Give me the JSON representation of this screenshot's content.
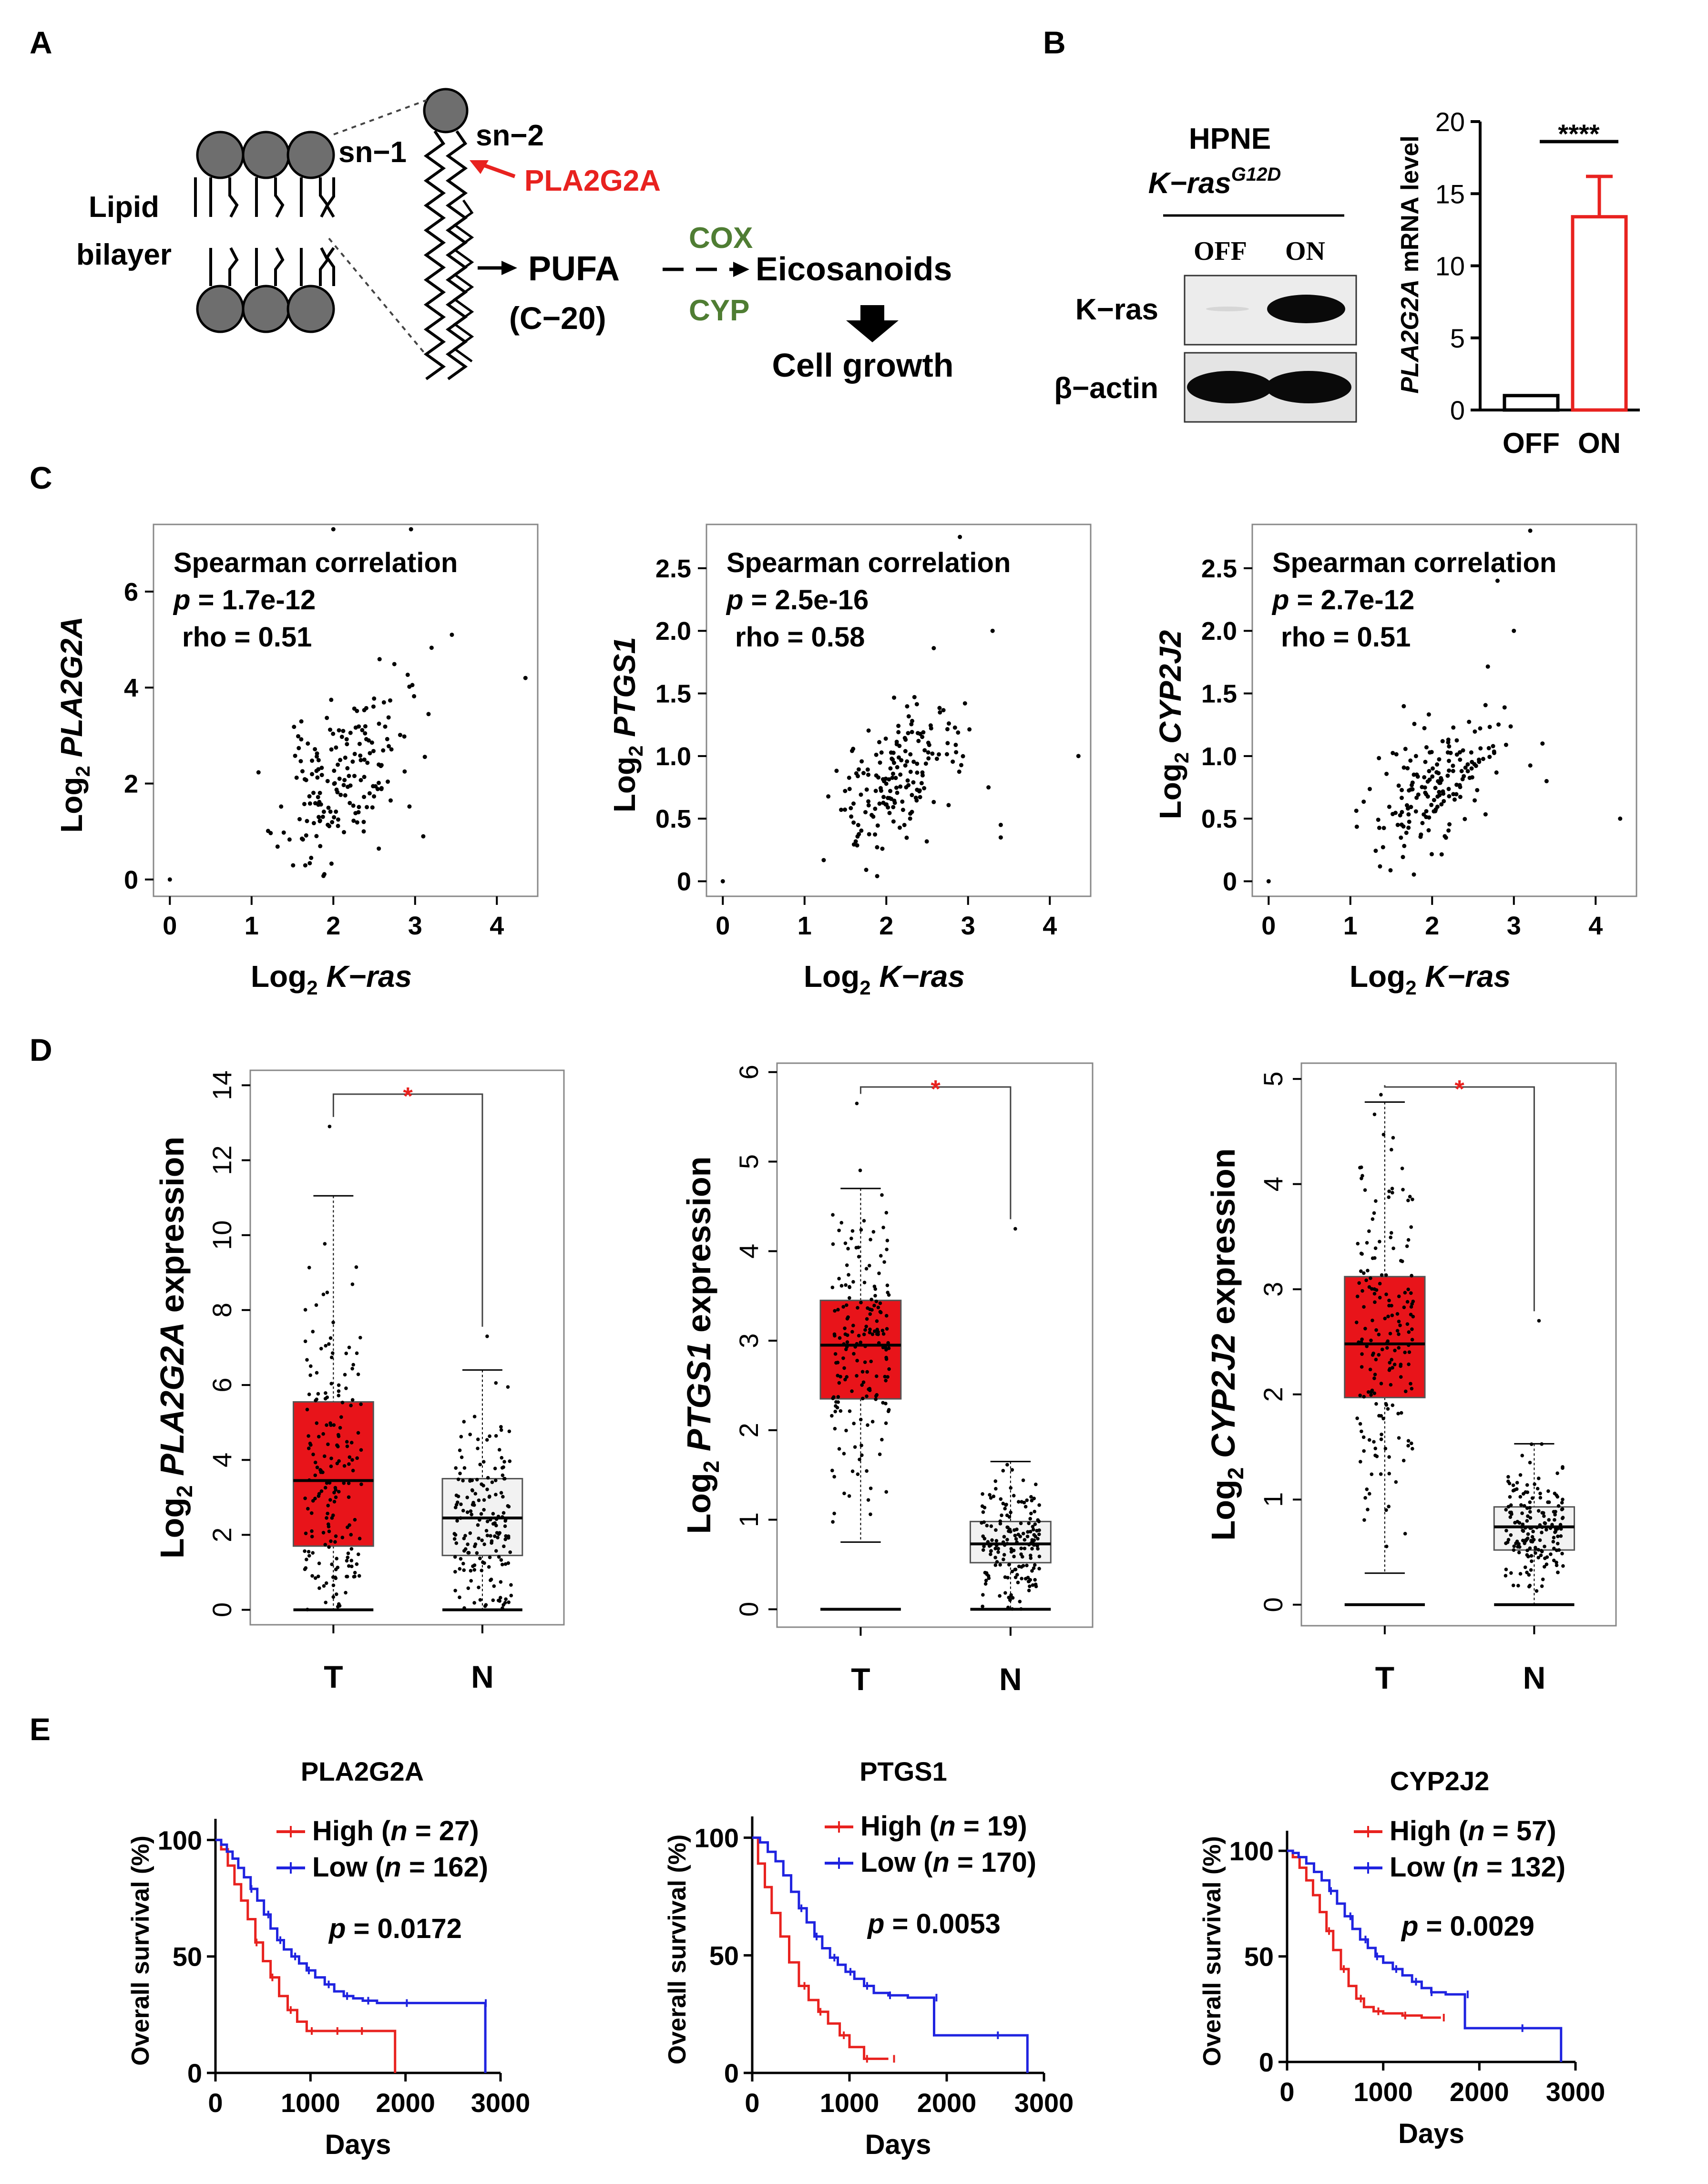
{
  "panels": {
    "A": {
      "letter": "A",
      "sn1": "sn−1",
      "sn2": "sn−2",
      "enzyme": "PLA2G2A",
      "bilayer_line1": "Lipid",
      "bilayer_line2": "bilayer",
      "pufa": "PUFA",
      "pufa_sub": "(C−20)",
      "cox": "COX",
      "cyp": "CYP",
      "eicosanoids": "Eicosanoids",
      "growth": "Cell growth"
    },
    "B": {
      "letter": "B",
      "cell_line": "HPNE",
      "construct_base": "K−ras",
      "construct_sup": "G12D",
      "lane_off": "OFF",
      "lane_on": "ON",
      "row1": "K−ras",
      "row2": "β−actin",
      "bar_ylabel_gene": "PLA2G2A",
      "bar_ylabel_rest": " mRNA level",
      "signif": "****"
    },
    "C": {
      "letter": "C"
    },
    "D": {
      "letter": "D"
    },
    "E": {
      "letter": "E"
    }
  },
  "colors": {
    "red": "#e8221f",
    "blue": "#1f23e0",
    "green": "#4f7d33",
    "ball": "#6e6e6e",
    "box_red": "#e8141a",
    "box_gray": "#f2f2f2"
  },
  "chart_data": [
    {
      "id": "B-bar",
      "type": "bar",
      "categories": [
        "OFF",
        "ON"
      ],
      "values": [
        1.0,
        13.4
      ],
      "errors": [
        0,
        2.8
      ],
      "ylim": [
        0,
        20
      ],
      "yticks": [
        "0",
        "5",
        "10",
        "15",
        "20"
      ],
      "ylabel": "PLA2G2A mRNA level",
      "significance": "****"
    },
    {
      "id": "C1",
      "type": "scatter",
      "ylabel_prefix": "Log",
      "ylabel_sub": "2",
      "ylabel_gene": "PLA2G2A",
      "xlabel_prefix": "Log",
      "xlabel_sub": "2",
      "xlabel_gene": "K−ras",
      "xlim": [
        -0.2,
        4.5
      ],
      "ylim": [
        -0.35,
        7.4
      ],
      "xticks": [
        "0",
        "1",
        "2",
        "3",
        "4"
      ],
      "yticks": [
        "0",
        "2",
        "4",
        "6"
      ],
      "annotation_title": "Spearman correlation",
      "p_label": "p",
      "p_value": " = 1.7e-12",
      "rho_text": "rho = 0.51",
      "center": [
        2.1,
        2.1
      ],
      "spread": [
        0.38,
        1.05
      ],
      "slope": 1.2,
      "n": 175,
      "seed": 11,
      "outliers": [
        [
          0,
          0
        ],
        [
          4.35,
          4.2
        ],
        [
          2.95,
          7.3
        ],
        [
          2.0,
          7.3
        ],
        [
          3.45,
          5.1
        ],
        [
          3.1,
          0.9
        ]
      ]
    },
    {
      "id": "C2",
      "type": "scatter",
      "ylabel_prefix": "Log",
      "ylabel_sub": "2",
      "ylabel_gene": "PTGS1",
      "xlabel_prefix": "Log",
      "xlabel_sub": "2",
      "xlabel_gene": "K−ras",
      "xlim": [
        -0.2,
        4.5
      ],
      "ylim": [
        -0.12,
        2.85
      ],
      "xticks": [
        "0",
        "1",
        "2",
        "3",
        "4"
      ],
      "yticks": [
        "0",
        "0.5",
        "1.0",
        "1.5",
        "2.0",
        "2.5"
      ],
      "annotation_title": "Spearman correlation",
      "p_label": "p",
      "p_value": " = 2.5e-16",
      "rho_text": "rho = 0.58",
      "center": [
        2.1,
        0.8
      ],
      "spread": [
        0.38,
        0.35
      ],
      "slope": 0.42,
      "n": 175,
      "seed": 23,
      "outliers": [
        [
          0,
          0
        ],
        [
          4.35,
          1.0
        ],
        [
          2.9,
          2.75
        ],
        [
          3.3,
          2.0
        ],
        [
          3.4,
          0.35
        ],
        [
          3.4,
          0.45
        ],
        [
          3.25,
          0.75
        ]
      ]
    },
    {
      "id": "C3",
      "type": "scatter",
      "ylabel_prefix": "Log",
      "ylabel_sub": "2",
      "ylabel_gene": "CYP2J2",
      "xlabel_prefix": "Log",
      "xlabel_sub": "2",
      "xlabel_gene": "K−ras",
      "xlim": [
        -0.2,
        4.5
      ],
      "ylim": [
        -0.12,
        2.85
      ],
      "xticks": [
        "0",
        "1",
        "2",
        "3",
        "4"
      ],
      "yticks": [
        "0",
        "0.5",
        "1.0",
        "1.5",
        "2.0",
        "2.5"
      ],
      "annotation_title": "Spearman correlation",
      "p_label": "p",
      "p_value": " = 2.7e-12",
      "rho_text": "rho = 0.51",
      "center": [
        2.1,
        0.8
      ],
      "spread": [
        0.38,
        0.33
      ],
      "slope": 0.38,
      "n": 175,
      "seed": 37,
      "outliers": [
        [
          0,
          0
        ],
        [
          4.3,
          0.5
        ],
        [
          3.2,
          2.8
        ],
        [
          2.8,
          2.4
        ],
        [
          3.0,
          2.0
        ],
        [
          3.4,
          0.8
        ],
        [
          3.35,
          1.1
        ]
      ]
    },
    {
      "id": "D1",
      "type": "box",
      "categories": [
        "T",
        "N"
      ],
      "ylabel_prefix": "Log",
      "ylabel_sub": "2",
      "ylabel_gene": "PLA2G2A",
      "ylabel_rest": " expression",
      "ylim": [
        -0.4,
        14.4
      ],
      "yticks": [
        "0",
        "2",
        "4",
        "6",
        "8",
        "10",
        "12",
        "14"
      ],
      "significance": "*",
      "boxes": [
        {
          "q1": 1.7,
          "median": 3.45,
          "q3": 5.55,
          "whisker_low": 0,
          "whisker_high": 11.05,
          "max_point": 12.9,
          "n": 180,
          "seed": 5
        },
        {
          "q1": 1.45,
          "median": 2.45,
          "q3": 3.5,
          "whisker_low": 0,
          "whisker_high": 6.4,
          "max_point": 7.3,
          "n": 170,
          "seed": 9
        }
      ]
    },
    {
      "id": "D2",
      "type": "box",
      "categories": [
        "T",
        "N"
      ],
      "ylabel_prefix": "Log",
      "ylabel_sub": "2",
      "ylabel_gene": "PTGS1",
      "ylabel_rest": " expression",
      "ylim": [
        -0.2,
        6.1
      ],
      "yticks": [
        "0",
        "1",
        "2",
        "3",
        "4",
        "5",
        "6"
      ],
      "significance": "*",
      "boxes": [
        {
          "q1": 2.35,
          "median": 2.95,
          "q3": 3.45,
          "whisker_low": 0.75,
          "whisker_high": 4.7,
          "max_point": 5.65,
          "n": 180,
          "seed": 15
        },
        {
          "q1": 0.52,
          "median": 0.73,
          "q3": 0.98,
          "whisker_low": 0,
          "whisker_high": 1.65,
          "max_point": 4.25,
          "n": 170,
          "seed": 19
        }
      ]
    },
    {
      "id": "D3",
      "type": "box",
      "categories": [
        "T",
        "N"
      ],
      "ylabel_prefix": "Log",
      "ylabel_sub": "2",
      "ylabel_gene": "CYP2J2",
      "ylabel_rest": " expression",
      "ylim": [
        -0.2,
        5.15
      ],
      "yticks": [
        "0",
        "1",
        "2",
        "3",
        "4",
        "5"
      ],
      "significance": "*",
      "boxes": [
        {
          "q1": 1.97,
          "median": 2.48,
          "q3": 3.12,
          "whisker_low": 0.3,
          "whisker_high": 4.78,
          "max_point": 4.85,
          "n": 180,
          "seed": 25
        },
        {
          "q1": 0.52,
          "median": 0.74,
          "q3": 0.93,
          "whisker_low": 0,
          "whisker_high": 1.53,
          "max_point": 2.7,
          "n": 170,
          "seed": 29
        }
      ]
    },
    {
      "id": "E1",
      "type": "line",
      "title": "PLA2G2A",
      "xlabel": "Days",
      "ylabel": "Overall survival (%)",
      "xlim": [
        0,
        3000
      ],
      "ylim": [
        0,
        105
      ],
      "xticks": [
        "0",
        "1000",
        "2000",
        "3000"
      ],
      "yticks": [
        "0",
        "50",
        "100"
      ],
      "p_label": "p",
      "p_value": " = 0.0172",
      "series": [
        {
          "name": "High",
          "n_label": "n",
          "n_value": " = 27)",
          "color": "red",
          "points": [
            [
              0,
              100
            ],
            [
              60,
              96
            ],
            [
              130,
              89
            ],
            [
              200,
              81
            ],
            [
              270,
              74
            ],
            [
              340,
              66
            ],
            [
              420,
              56
            ],
            [
              500,
              48
            ],
            [
              580,
              41
            ],
            [
              670,
              33
            ],
            [
              760,
              27
            ],
            [
              860,
              22
            ],
            [
              960,
              18
            ],
            [
              1080,
              18
            ],
            [
              1250,
              18
            ],
            [
              1400,
              18
            ],
            [
              1500,
              18
            ],
            [
              1890,
              18
            ],
            [
              1890,
              0
            ]
          ]
        },
        {
          "name": "Low",
          "n_label": "n",
          "n_value": " = 162)",
          "color": "blue",
          "points": [
            [
              0,
              100
            ],
            [
              60,
              98
            ],
            [
              120,
              95
            ],
            [
              180,
              92
            ],
            [
              240,
              88
            ],
            [
              300,
              84
            ],
            [
              370,
              79
            ],
            [
              440,
              74
            ],
            [
              510,
              68
            ],
            [
              580,
              62
            ],
            [
              650,
              57
            ],
            [
              720,
              53
            ],
            [
              800,
              50
            ],
            [
              880,
              47
            ],
            [
              960,
              44
            ],
            [
              1050,
              41
            ],
            [
              1150,
              38
            ],
            [
              1250,
              35
            ],
            [
              1350,
              33
            ],
            [
              1450,
              32
            ],
            [
              1550,
              31
            ],
            [
              1700,
              30
            ],
            [
              2000,
              30
            ],
            [
              2400,
              30
            ],
            [
              2840,
              30
            ],
            [
              2840,
              0
            ]
          ]
        }
      ]
    },
    {
      "id": "E2",
      "type": "line",
      "title": "PTGS1",
      "xlabel": "Days",
      "ylabel": "Overall survival (%)",
      "xlim": [
        0,
        3000
      ],
      "ylim": [
        0,
        105
      ],
      "xticks": [
        "0",
        "1000",
        "2000",
        "3000"
      ],
      "yticks": [
        "0",
        "50",
        "100"
      ],
      "p_label": "p",
      "p_value": " = 0.0053",
      "series": [
        {
          "name": "High",
          "n_label": "n",
          "n_value": " = 19)",
          "color": "red",
          "points": [
            [
              0,
              100
            ],
            [
              60,
              89
            ],
            [
              130,
              79
            ],
            [
              200,
              68
            ],
            [
              290,
              58
            ],
            [
              380,
              47
            ],
            [
              480,
              37
            ],
            [
              580,
              31
            ],
            [
              680,
              26
            ],
            [
              780,
              21
            ],
            [
              900,
              16
            ],
            [
              1000,
              11
            ],
            [
              1150,
              6
            ],
            [
              1250,
              6
            ],
            [
              1400,
              6
            ]
          ]
        },
        {
          "name": "Low",
          "n_label": "n",
          "n_value": " = 170)",
          "color": "blue",
          "points": [
            [
              0,
              100
            ],
            [
              80,
              98
            ],
            [
              160,
              94
            ],
            [
              240,
              90
            ],
            [
              320,
              84
            ],
            [
              400,
              77
            ],
            [
              480,
              70
            ],
            [
              560,
              64
            ],
            [
              640,
              58
            ],
            [
              720,
              53
            ],
            [
              800,
              49
            ],
            [
              880,
              46
            ],
            [
              960,
              43
            ],
            [
              1050,
              40
            ],
            [
              1150,
              37
            ],
            [
              1250,
              34
            ],
            [
              1400,
              33
            ],
            [
              1600,
              32
            ],
            [
              1870,
              32
            ],
            [
              1870,
              16
            ],
            [
              2500,
              16
            ],
            [
              2830,
              16
            ],
            [
              2830,
              0
            ]
          ]
        }
      ]
    },
    {
      "id": "E3",
      "type": "line",
      "title": "CYP2J2",
      "xlabel": "Days",
      "ylabel": "Overall survival (%)",
      "xlim": [
        0,
        3000
      ],
      "ylim": [
        0,
        105
      ],
      "xticks": [
        "0",
        "1000",
        "2000",
        "3000"
      ],
      "yticks": [
        "0",
        "50",
        "100"
      ],
      "p_label": "p",
      "p_value": " = 0.0029",
      "series": [
        {
          "name": "High",
          "n_label": "n",
          "n_value": " = 57)",
          "color": "red",
          "points": [
            [
              0,
              100
            ],
            [
              60,
              97
            ],
            [
              130,
              92
            ],
            [
              200,
              86
            ],
            [
              270,
              79
            ],
            [
              340,
              71
            ],
            [
              410,
              62
            ],
            [
              480,
              53
            ],
            [
              560,
              44
            ],
            [
              640,
              36
            ],
            [
              720,
              30
            ],
            [
              800,
              26
            ],
            [
              900,
              24
            ],
            [
              1000,
              23
            ],
            [
              1200,
              22
            ],
            [
              1400,
              21
            ],
            [
              1600,
              21
            ]
          ]
        },
        {
          "name": "Low",
          "n_label": "n",
          "n_value": " = 132)",
          "color": "blue",
          "points": [
            [
              0,
              100
            ],
            [
              60,
              99
            ],
            [
              120,
              97
            ],
            [
              200,
              94
            ],
            [
              280,
              90
            ],
            [
              360,
              86
            ],
            [
              440,
              81
            ],
            [
              520,
              75
            ],
            [
              600,
              69
            ],
            [
              680,
              63
            ],
            [
              760,
              58
            ],
            [
              840,
              54
            ],
            [
              920,
              50
            ],
            [
              1000,
              47
            ],
            [
              1100,
              44
            ],
            [
              1200,
              41
            ],
            [
              1300,
              38
            ],
            [
              1400,
              35
            ],
            [
              1500,
              33
            ],
            [
              1650,
              32
            ],
            [
              1850,
              32
            ],
            [
              1850,
              16
            ],
            [
              2400,
              16
            ],
            [
              2850,
              16
            ],
            [
              2850,
              0
            ]
          ]
        }
      ]
    }
  ]
}
